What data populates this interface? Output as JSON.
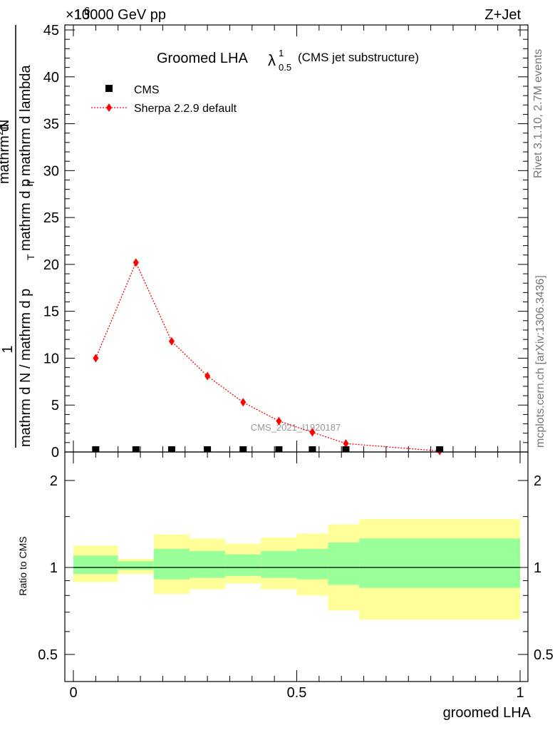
{
  "header": {
    "energy": "13000 GeV pp",
    "process": "Z+Jet",
    "exponent": "×10",
    "exponent_power": "6"
  },
  "side_text": {
    "rivet": "Rivet 3.1.10,  2.7M events",
    "mcplots": "mcplots.cern.ch [arXiv:1306.3436]"
  },
  "watermark": "CMS_2021_I1920187",
  "title": {
    "main": "Groomed LHA",
    "lambda": "λ",
    "sup": "1",
    "sub": "0.5",
    "suffix": "(CMS jet substructure)"
  },
  "legend": {
    "cms": "CMS",
    "sherpa": "Sherpa 2.2.9 default"
  },
  "colors": {
    "sherpa": "#ff0000",
    "cms": "#000000",
    "band_inner": "#99ff99",
    "band_outer": "#ffff99"
  },
  "chart_data": [
    {
      "type": "line",
      "title": "Groomed LHA λ^1_0.5 (CMS jet substructure)",
      "ylabel": "1 / mathrm d N / mathrm d p_T mathrm d p_T mathrm d lambda  mathrm d^2 N",
      "ylabel_parts": {
        "left": "mathrm d N / mathrm d p",
        "right": "mathrm d p",
        "tail": "mathrm d lambda",
        "one": "1",
        "num": "mathrm d",
        "num_sup": "2",
        "num_tail": "N",
        "sub_t": "T"
      },
      "y_scale_note": "×10^6",
      "xlim": [
        0,
        1
      ],
      "ylim": [
        0,
        45.5
      ],
      "yticks": [
        0,
        5,
        10,
        15,
        20,
        25,
        30,
        35,
        40,
        45
      ],
      "ytick_labels": [
        "0",
        "5",
        "10",
        "15",
        "20",
        "25",
        "30",
        "35",
        "40",
        "45"
      ],
      "series": [
        {
          "name": "CMS",
          "marker": "square",
          "x": [
            0.05,
            0.14,
            0.22,
            0.3,
            0.38,
            0.46,
            0.535,
            0.61,
            0.82
          ],
          "y": [
            0.05,
            0.05,
            0.05,
            0.1,
            0.05,
            0.05,
            0.05,
            0.05,
            0.05
          ]
        },
        {
          "name": "Sherpa 2.2.9 default",
          "marker": "diamond",
          "x": [
            0.05,
            0.14,
            0.22,
            0.3,
            0.38,
            0.46,
            0.535,
            0.61,
            0.82
          ],
          "y": [
            10.0,
            20.2,
            11.8,
            8.1,
            5.3,
            3.3,
            2.1,
            0.9,
            0.1
          ]
        }
      ]
    },
    {
      "type": "area",
      "ylabel": "Ratio to CMS",
      "xlabel": "groomed LHA",
      "scale": "log",
      "xlim": [
        0,
        1
      ],
      "ylim": [
        0.4,
        2.4
      ],
      "yticks": [
        0.5,
        1,
        2
      ],
      "ytick_labels": [
        "0.5",
        "1",
        "2"
      ],
      "xticks": [
        0,
        0.5,
        1
      ],
      "xtick_labels": [
        "0",
        "0.5",
        "1"
      ],
      "bins": [
        {
          "x0": 0.0,
          "x1": 0.1,
          "inner": [
            0.95,
            1.1
          ],
          "outer": [
            0.89,
            1.19
          ]
        },
        {
          "x0": 0.1,
          "x1": 0.18,
          "inner": [
            0.98,
            1.05
          ],
          "outer": [
            0.95,
            1.07
          ]
        },
        {
          "x0": 0.18,
          "x1": 0.26,
          "inner": [
            0.91,
            1.16
          ],
          "outer": [
            0.81,
            1.3
          ]
        },
        {
          "x0": 0.26,
          "x1": 0.34,
          "inner": [
            0.92,
            1.14
          ],
          "outer": [
            0.84,
            1.26
          ]
        },
        {
          "x0": 0.34,
          "x1": 0.42,
          "inner": [
            0.935,
            1.11
          ],
          "outer": [
            0.88,
            1.21
          ]
        },
        {
          "x0": 0.42,
          "x1": 0.5,
          "inner": [
            0.92,
            1.14
          ],
          "outer": [
            0.84,
            1.27
          ]
        },
        {
          "x0": 0.5,
          "x1": 0.57,
          "inner": [
            0.91,
            1.16
          ],
          "outer": [
            0.8,
            1.31
          ]
        },
        {
          "x0": 0.57,
          "x1": 0.64,
          "inner": [
            0.87,
            1.22
          ],
          "outer": [
            0.71,
            1.41
          ]
        },
        {
          "x0": 0.64,
          "x1": 1.0,
          "inner": [
            0.85,
            1.26
          ],
          "outer": [
            0.66,
            1.47
          ]
        }
      ]
    }
  ]
}
